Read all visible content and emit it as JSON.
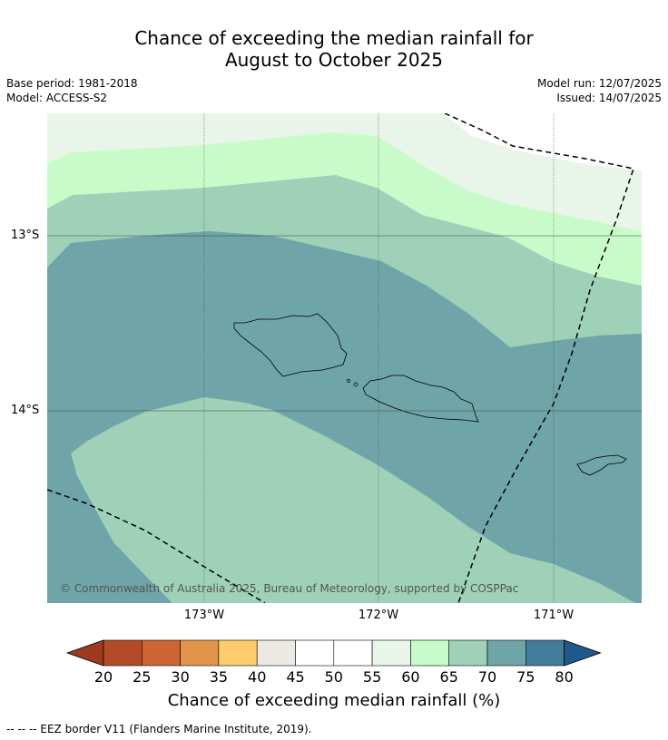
{
  "title_line1": "Chance of exceeding the median rainfall for",
  "title_line2": "August to October 2025",
  "base_period": "Base period: 1981-2018",
  "model": "Model: ACCESS-S2",
  "model_run": "Model run: 12/07/2025",
  "issued": "Issued: 14/07/2025",
  "copyright": "© Commonwealth of Australia 2025, Bureau of Meteorology, supported by COSPPac",
  "lat_labels": [
    "13°S",
    "14°S"
  ],
  "lon_labels": [
    "173°W",
    "172°W",
    "171°W"
  ],
  "colorbar": {
    "ticks": [
      "20",
      "25",
      "30",
      "35",
      "40",
      "45",
      "50",
      "55",
      "60",
      "65",
      "70",
      "75",
      "80"
    ],
    "colors": [
      "#9e3a1e",
      "#b44b28",
      "#cf6533",
      "#e2944a",
      "#fdcd6b",
      "#ece9e4",
      "#ffffff",
      "#ffffff",
      "#e9f5e8",
      "#c9fbca",
      "#9ed1b8",
      "#6fa4a8",
      "#437b9a",
      "#1f5a8a"
    ],
    "title": "Chance of exceeding median rainfall (%)"
  },
  "footnote": "--  --  -- EEZ border V11 (Flanders Marine Institute, 2019)."
}
